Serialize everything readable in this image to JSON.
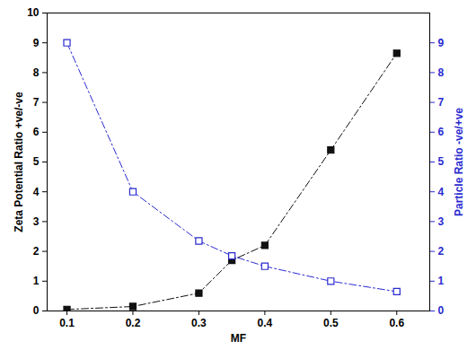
{
  "chart_data": {
    "type": "line",
    "x_label": "MF",
    "y_label": "Zeta Potential Ratio +ve/-ve",
    "y2_label": "Particle Ratio -ve/+ve",
    "xlim": [
      0.07,
      0.65
    ],
    "xticks": [
      0.1,
      0.2,
      0.3,
      0.4,
      0.5,
      0.6
    ],
    "ylim": [
      0,
      10
    ],
    "yticks": [
      0,
      1,
      2,
      3,
      4,
      5,
      6,
      7,
      8,
      9,
      10
    ],
    "y2lim": [
      0,
      10
    ],
    "y2ticks": [
      0,
      1,
      2,
      3,
      4,
      5,
      6,
      7,
      8,
      9
    ],
    "grid": false,
    "series": [
      {
        "name": "Zeta Potential Ratio +ve/-ve",
        "color": "#111111",
        "marker": "square",
        "line_style": "dashdot",
        "x": [
          0.1,
          0.2,
          0.3,
          0.35,
          0.4,
          0.5,
          0.6
        ],
        "values": [
          0.05,
          0.15,
          0.6,
          1.7,
          2.2,
          5.4,
          8.65
        ]
      },
      {
        "name": "Particle Ratio -ve/+ve",
        "color": "#2a2ad0",
        "marker": "square-open",
        "line_style": "dashdot",
        "axis": "y2",
        "x": [
          0.1,
          0.2,
          0.3,
          0.35,
          0.4,
          0.5,
          0.6
        ],
        "values": [
          9,
          4,
          2.35,
          1.85,
          1.5,
          1.0,
          0.65
        ]
      }
    ]
  }
}
